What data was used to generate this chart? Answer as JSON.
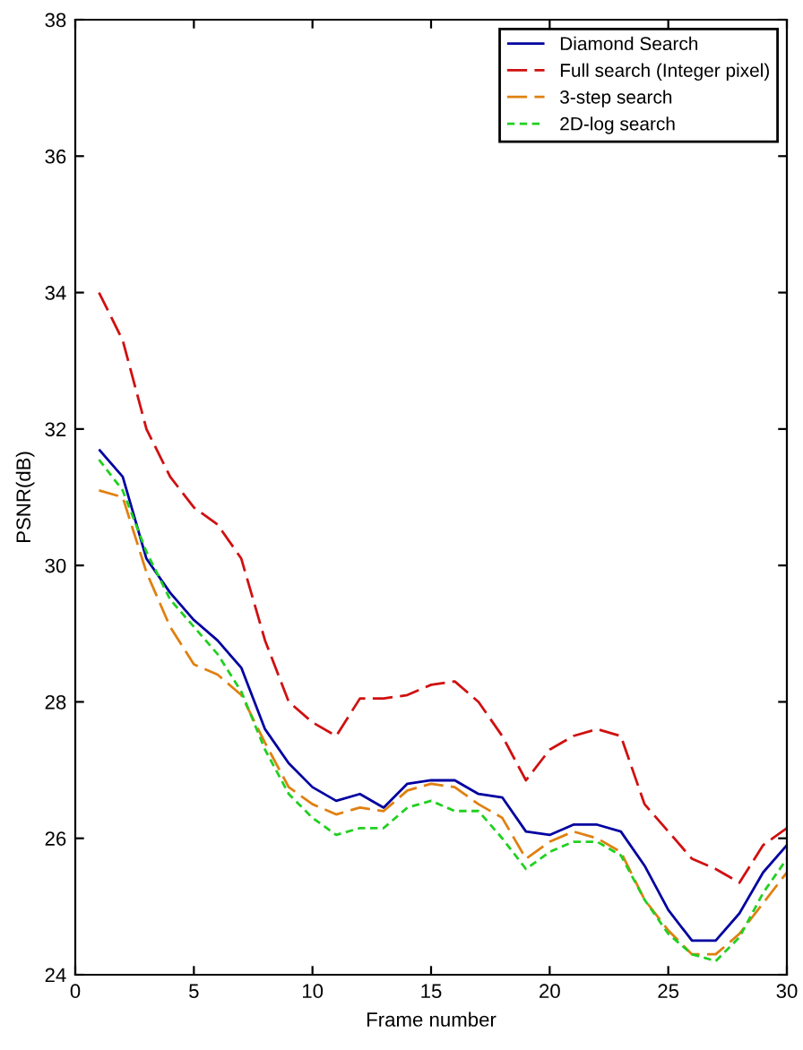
{
  "chart_data": {
    "type": "line",
    "xlabel": "Frame number",
    "ylabel": "PSNR(dB)",
    "x": [
      1,
      2,
      3,
      4,
      5,
      6,
      7,
      8,
      9,
      10,
      11,
      12,
      13,
      14,
      15,
      16,
      17,
      18,
      19,
      20,
      21,
      22,
      23,
      24,
      25,
      26,
      27,
      28,
      29,
      30
    ],
    "series": [
      {
        "name": "Diamond Search",
        "color": "#0000a0",
        "line_style": "solid",
        "values": [
          31.7,
          31.3,
          30.1,
          29.6,
          29.2,
          28.9,
          28.5,
          27.6,
          27.1,
          26.75,
          26.55,
          26.65,
          26.45,
          26.8,
          26.85,
          26.85,
          26.65,
          26.6,
          26.1,
          26.05,
          26.2,
          26.2,
          26.1,
          25.6,
          24.95,
          24.5,
          24.5,
          24.9,
          25.5,
          25.9
        ]
      },
      {
        "name": "Full search (Integer pixel)",
        "color": "#d01010",
        "line_style": "dashed",
        "values": [
          34.0,
          33.3,
          32.0,
          31.3,
          30.85,
          30.6,
          30.1,
          28.9,
          28.0,
          27.7,
          27.5,
          28.05,
          28.05,
          28.1,
          28.25,
          28.3,
          28.0,
          27.5,
          26.85,
          27.3,
          27.5,
          27.6,
          27.5,
          26.5,
          26.1,
          25.7,
          25.55,
          25.35,
          25.9,
          26.15
        ]
      },
      {
        "name": "3-step search",
        "color": "#e08010",
        "line_style": "dashed",
        "values": [
          31.1,
          31.0,
          29.9,
          29.1,
          28.55,
          28.4,
          28.1,
          27.4,
          26.75,
          26.5,
          26.35,
          26.45,
          26.4,
          26.7,
          26.8,
          26.75,
          26.5,
          26.3,
          25.7,
          25.95,
          26.1,
          26.0,
          25.8,
          25.1,
          24.65,
          24.3,
          24.3,
          24.6,
          25.05,
          25.5
        ]
      },
      {
        "name": "2D-log search",
        "color": "#20d020",
        "line_style": "dotted",
        "values": [
          31.55,
          31.1,
          30.2,
          29.5,
          29.1,
          28.7,
          28.15,
          27.3,
          26.65,
          26.3,
          26.05,
          26.15,
          26.15,
          26.45,
          26.55,
          26.4,
          26.4,
          26.0,
          25.55,
          25.8,
          25.95,
          25.95,
          25.75,
          25.1,
          24.6,
          24.3,
          24.2,
          24.55,
          25.2,
          25.7
        ]
      }
    ],
    "xlim": [
      0,
      30
    ],
    "xticks": [
      0,
      5,
      10,
      15,
      20,
      25,
      30
    ],
    "ylim": [
      24,
      38
    ],
    "yticks": [
      24,
      26,
      28,
      30,
      32,
      34,
      36,
      38
    ],
    "grid": false,
    "legend": "top right",
    "marker": "none"
  }
}
